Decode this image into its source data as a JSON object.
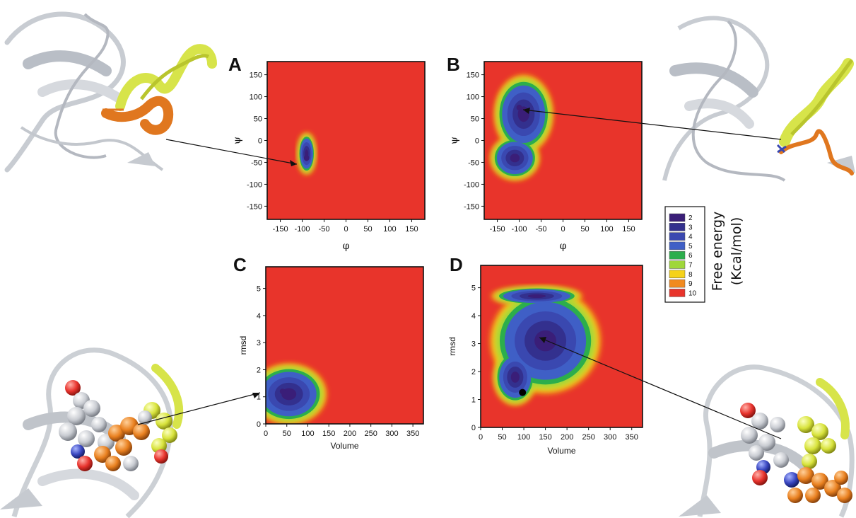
{
  "colors": {
    "levels": [
      "#3a1e78",
      "#33308e",
      "#3a48b0",
      "#3f5fc6",
      "#2cae4c",
      "#9fd73a",
      "#f5d21a",
      "#f18a1f",
      "#e8342b"
    ],
    "background": "#e8342b",
    "helix_yellow": "#d7e44a",
    "helix_orange": "#e0771f",
    "protein_gray": "#cfd3d8"
  },
  "legend": {
    "labels": [
      "2",
      "3",
      "4",
      "5",
      "6",
      "7",
      "8",
      "9",
      "10"
    ],
    "title_line1": "Free energy",
    "title_line2": "(Kcal/mol)"
  },
  "chart_data": [
    {
      "panel": "A",
      "type": "heatmap",
      "xlabel": "φ",
      "ylabel": "ψ",
      "xlim": [
        -180,
        180
      ],
      "ylim": [
        -180,
        180
      ],
      "xticks": [
        -150,
        -100,
        -50,
        0,
        50,
        100,
        150
      ],
      "yticks": [
        150,
        100,
        50,
        0,
        -50,
        -100,
        -150
      ],
      "minima": [
        {
          "x": -90,
          "y": -40,
          "level": 2
        }
      ],
      "wells": [
        {
          "cx": -90,
          "cy": -30,
          "rx": 18,
          "ry": 42
        }
      ]
    },
    {
      "panel": "B",
      "type": "heatmap",
      "xlabel": "φ",
      "ylabel": "ψ",
      "xlim": [
        -180,
        180
      ],
      "ylim": [
        -180,
        180
      ],
      "xticks": [
        -150,
        -100,
        -50,
        0,
        50,
        100,
        150
      ],
      "yticks": [
        150,
        100,
        50,
        0,
        -50,
        -100,
        -150
      ],
      "minima": [
        {
          "x": -100,
          "y": 75,
          "level": 2
        }
      ],
      "wells": [
        {
          "cx": -90,
          "cy": 60,
          "rx": 60,
          "ry": 80
        },
        {
          "cx": -110,
          "cy": -40,
          "rx": 50,
          "ry": 45
        }
      ]
    },
    {
      "panel": "C",
      "type": "heatmap",
      "xlabel": "Volume",
      "ylabel": "rmsd",
      "xlim": [
        0,
        375
      ],
      "ylim": [
        0,
        5.8
      ],
      "xticks": [
        0,
        50,
        100,
        150,
        200,
        250,
        300,
        350
      ],
      "yticks": [
        5,
        4,
        3,
        2,
        1,
        0
      ],
      "minima": [
        {
          "x": 40,
          "y": 1.2,
          "level": 2
        }
      ],
      "wells": [
        {
          "cx": 55,
          "cy": 1.1,
          "rx": 80,
          "ry": 1.0
        }
      ]
    },
    {
      "panel": "D",
      "type": "heatmap",
      "xlabel": "Volume",
      "ylabel": "rmsd",
      "xlim": [
        0,
        375
      ],
      "ylim": [
        0,
        5.8
      ],
      "xticks": [
        0,
        50,
        100,
        150,
        200,
        250,
        300,
        350
      ],
      "yticks": [
        5,
        4,
        3,
        2,
        1,
        0
      ],
      "minima": [
        {
          "x": 150,
          "y": 3.3,
          "level": 2
        }
      ],
      "wells": [
        {
          "cx": 150,
          "cy": 3.1,
          "rx": 115,
          "ry": 1.7
        },
        {
          "cx": 130,
          "cy": 4.7,
          "rx": 95,
          "ry": 0.3
        },
        {
          "cx": 80,
          "cy": 1.8,
          "rx": 45,
          "ry": 0.9
        }
      ],
      "marker": {
        "x": 97,
        "y": 1.25
      }
    }
  ]
}
